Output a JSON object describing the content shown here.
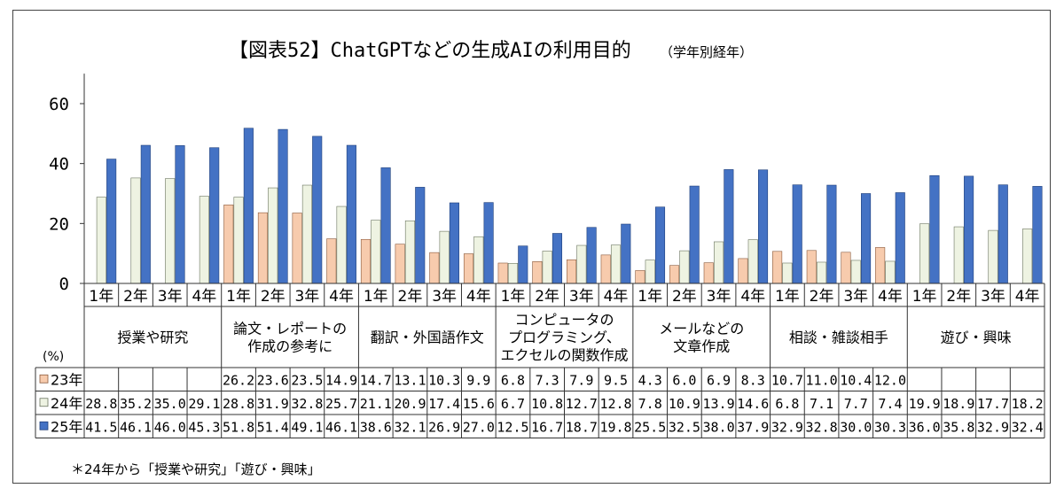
{
  "chart_data": {
    "type": "bar",
    "title": "【図表52】ChatGPTなどの生成AIの利用目的",
    "subtitle": "（学年別経年）",
    "ylabel": "",
    "unit_label": "(%)",
    "ylim": [
      0,
      70
    ],
    "yticks": [
      0,
      20,
      40,
      60
    ],
    "grid": false,
    "footnote": "＊24年から「授業や研究」「遊び・興味」",
    "year_labels": [
      "1年",
      "2年",
      "3年",
      "4年"
    ],
    "groups": [
      {
        "lines": [
          "授業や研究"
        ]
      },
      {
        "lines": [
          "論文・レポートの",
          "作成の参考に"
        ]
      },
      {
        "lines": [
          "翻訳・外国語作文"
        ]
      },
      {
        "lines": [
          "コンピュータの",
          "プログラミング、",
          "エクセルの関数作成"
        ]
      },
      {
        "lines": [
          "メールなどの",
          "文章作成"
        ]
      },
      {
        "lines": [
          "相談・雑談相手"
        ]
      },
      {
        "lines": [
          "遊び・興味"
        ]
      }
    ],
    "series": [
      {
        "name": "23年",
        "color": "#f7cbad",
        "border": "#8a5a3c",
        "values": [
          null,
          null,
          null,
          null,
          26.2,
          23.6,
          23.5,
          14.9,
          14.7,
          13.1,
          10.3,
          9.9,
          6.8,
          7.3,
          7.9,
          9.5,
          4.3,
          6.0,
          6.9,
          8.3,
          10.7,
          11.0,
          10.4,
          12.0,
          null,
          null,
          null,
          null
        ],
        "labels": [
          "",
          "",
          "",
          "",
          "26.2",
          "23.6",
          "23.5",
          "14.9",
          "14.7",
          "13.1",
          "10.3",
          "9.9",
          "6.8",
          "7.3",
          "7.9",
          "9.5",
          "4.3",
          "6.0",
          "6.9",
          "8.3",
          "10.7",
          "11.0",
          "10.4",
          "12.0",
          "",
          "",
          "",
          ""
        ]
      },
      {
        "name": "24年",
        "color": "#eef3e2",
        "border": "#6b7560",
        "values": [
          28.8,
          35.2,
          35.0,
          29.1,
          28.8,
          31.9,
          32.8,
          25.7,
          21.1,
          20.9,
          17.4,
          15.6,
          6.7,
          10.8,
          12.7,
          12.8,
          7.8,
          10.9,
          13.9,
          14.6,
          6.8,
          7.1,
          7.7,
          7.4,
          19.9,
          18.9,
          17.7,
          18.2
        ],
        "labels": [
          "28.8",
          "35.2",
          "35.0",
          "29.1",
          "28.8",
          "31.9",
          "32.8",
          "25.7",
          "21.1",
          "20.9",
          "17.4",
          "15.6",
          "6.7",
          "10.8",
          "12.7",
          "12.8",
          "7.8",
          "10.9",
          "13.9",
          "14.6",
          "6.8",
          "7.1",
          "7.7",
          "7.4",
          "19.9",
          "18.9",
          "17.7",
          "18.2"
        ]
      },
      {
        "name": "25年",
        "color": "#4472c4",
        "border": "#1f3f7a",
        "values": [
          41.5,
          46.1,
          46.0,
          45.3,
          51.8,
          51.4,
          49.1,
          46.1,
          38.6,
          32.1,
          26.9,
          27.0,
          12.5,
          16.7,
          18.7,
          19.8,
          25.5,
          32.5,
          38.0,
          37.9,
          32.9,
          32.8,
          30.0,
          30.3,
          36.0,
          35.8,
          32.9,
          32.4
        ],
        "labels": [
          "41.5",
          "46.1",
          "46.0",
          "45.3",
          "51.8",
          "51.4",
          "49.1",
          "46.1",
          "38.6",
          "32.1",
          "26.9",
          "27.0",
          "12.5",
          "16.7",
          "18.7",
          "19.8",
          "25.5",
          "32.5",
          "38.0",
          "37.9",
          "32.9",
          "32.8",
          "30.0",
          "30.3",
          "36.0",
          "35.8",
          "32.9",
          "32.4"
        ]
      }
    ]
  }
}
